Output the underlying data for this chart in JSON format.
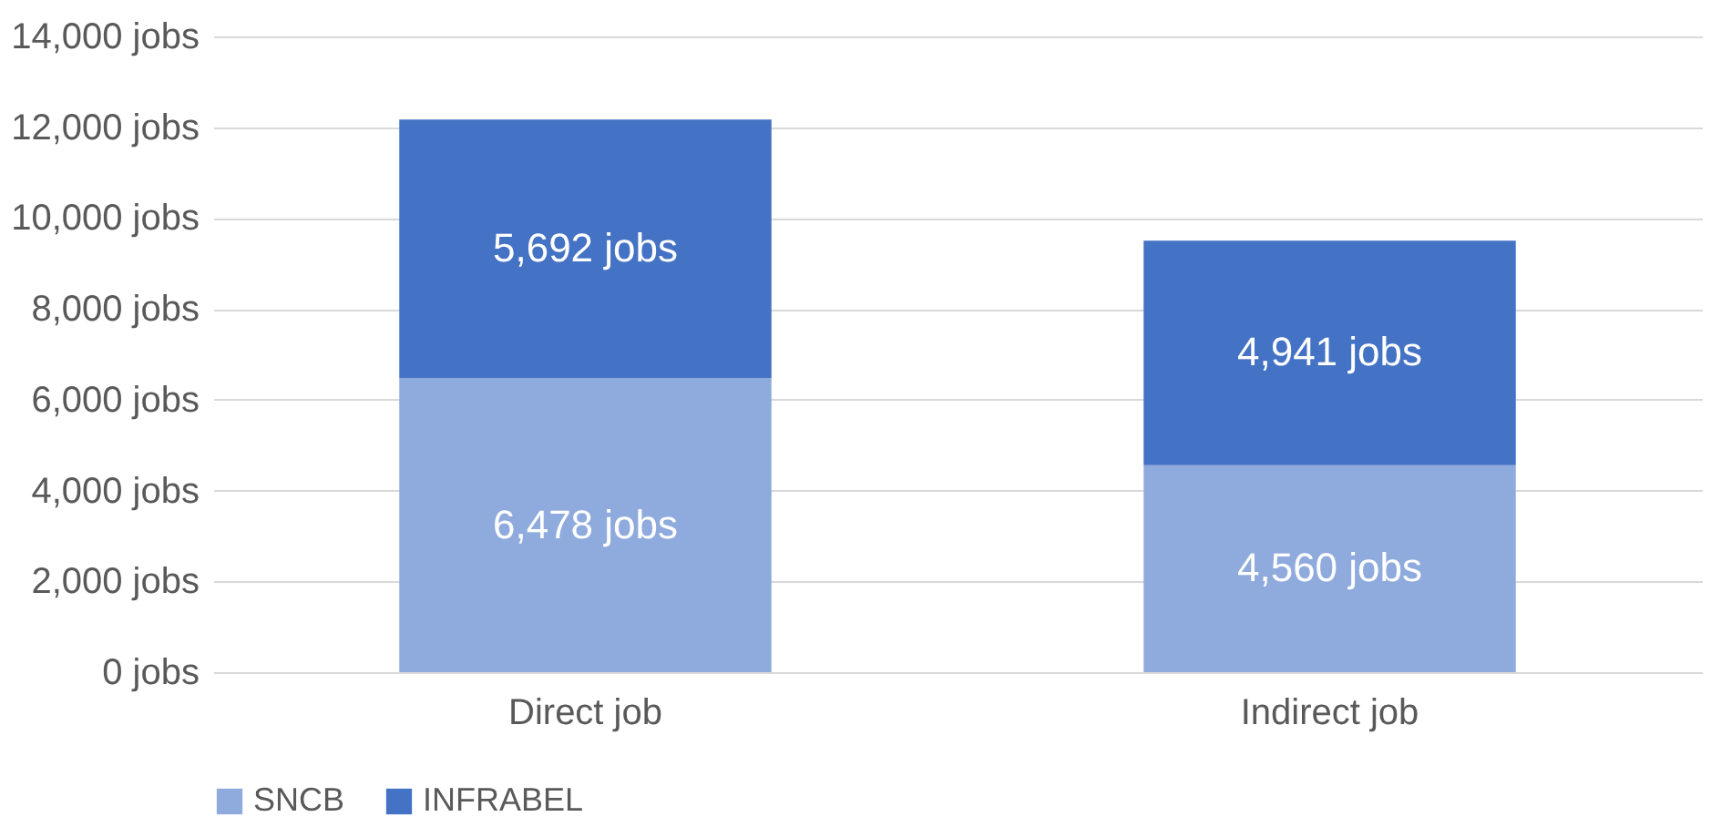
{
  "chart_data": {
    "type": "bar",
    "stacked": true,
    "categories": [
      "Direct job",
      "Indirect job"
    ],
    "series": [
      {
        "name": "SNCB",
        "color": "#8faadc",
        "values": [
          6478,
          4560
        ],
        "value_labels": [
          "6,478 jobs",
          "4,560 jobs"
        ]
      },
      {
        "name": "INFRABEL",
        "color": "#4472c4",
        "values": [
          5692,
          4941
        ],
        "value_labels": [
          "5,692 jobs",
          "4,941 jobs"
        ]
      }
    ],
    "ylim": [
      0,
      14000
    ],
    "yticks": [
      {
        "value": 0,
        "label": "0 jobs"
      },
      {
        "value": 2000,
        "label": "2,000 jobs"
      },
      {
        "value": 4000,
        "label": "4,000 jobs"
      },
      {
        "value": 6000,
        "label": "6,000 jobs"
      },
      {
        "value": 8000,
        "label": "8,000 jobs"
      },
      {
        "value": 10000,
        "label": "10,000 jobs"
      },
      {
        "value": 12000,
        "label": "12,000 jobs"
      },
      {
        "value": 14000,
        "label": "14,000 jobs"
      }
    ],
    "grid": "y",
    "legend": "bottom"
  }
}
